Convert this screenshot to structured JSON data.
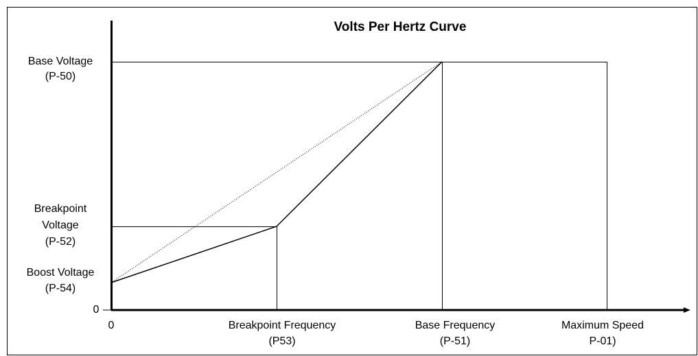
{
  "title": "Volts Per Hertz Curve",
  "y_axis": {
    "origin": "0",
    "labels": [
      {
        "lines": [
          "Base Voltage",
          "(P-50)"
        ]
      },
      {
        "lines": [
          "Breakpoint",
          "Voltage",
          "(P-52)"
        ]
      },
      {
        "lines": [
          "Boost Voltage",
          "(P-54)"
        ]
      }
    ]
  },
  "x_axis": {
    "origin": "0",
    "labels": [
      {
        "lines": [
          "Breakpoint Frequency",
          "(P53)"
        ]
      },
      {
        "lines": [
          "Base Frequency",
          "(P-51)"
        ]
      },
      {
        "lines": [
          "Maximum Speed",
          "P-01)"
        ]
      }
    ]
  }
}
